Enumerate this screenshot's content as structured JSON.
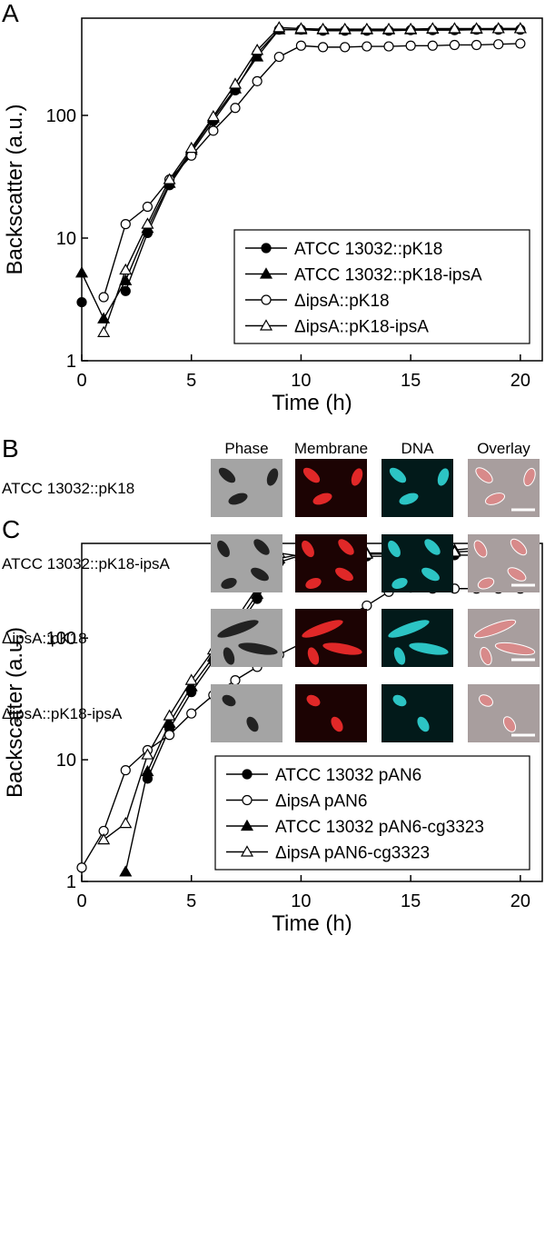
{
  "chart_data": [
    {
      "type": "line",
      "panel": "A",
      "x_label": "Time (h)",
      "y_label": "Backscatter (a.u.)",
      "yscale": "log",
      "xlim": [
        0,
        21
      ],
      "ylim": [
        1,
        620
      ],
      "xticks": [
        0,
        5,
        10,
        15,
        20
      ],
      "yticks": [
        1,
        10,
        100
      ],
      "legend": "lower right",
      "x": [
        0,
        1,
        2,
        3,
        4,
        5,
        6,
        7,
        8,
        9,
        10,
        11,
        12,
        13,
        14,
        15,
        16,
        17,
        18,
        19,
        20
      ],
      "series": [
        {
          "name": "ATCC 13032::pK18",
          "color": "#000000",
          "marker": "circle",
          "filled": true,
          "values": [
            3,
            null,
            3.7,
            11,
            27,
            50,
            90,
            160,
            320,
            500,
            500,
            490,
            490,
            490,
            490,
            495,
            495,
            495,
            500,
            500,
            500
          ]
        },
        {
          "name": "ATCC 13032::pK18-ipsA",
          "color": "#000000",
          "marker": "triangle",
          "filled": true,
          "values": [
            5.2,
            2.2,
            4.5,
            12,
            28,
            52,
            95,
            165,
            300,
            500,
            500,
            500,
            500,
            500,
            500,
            500,
            505,
            505,
            505,
            510,
            510
          ]
        },
        {
          "name": "ΔipsA::pK18",
          "color": "#000000",
          "marker": "circle",
          "filled": false,
          "values": [
            null,
            3.3,
            13,
            18,
            30,
            47,
            75,
            115,
            190,
            300,
            370,
            360,
            360,
            365,
            365,
            370,
            370,
            375,
            375,
            380,
            385
          ]
        },
        {
          "name": "ΔipsA::pK18-ipsA",
          "color": "#000000",
          "marker": "triangle",
          "filled": false,
          "values": [
            null,
            1.7,
            5.5,
            13,
            30,
            54,
            98,
            180,
            340,
            520,
            510,
            505,
            505,
            505,
            505,
            505,
            510,
            510,
            510,
            510,
            510
          ]
        }
      ]
    },
    {
      "type": "line",
      "panel": "C",
      "x_label": "Time (h)",
      "y_label": "Backscatter (a.u.)",
      "yscale": "log",
      "xlim": [
        0,
        21
      ],
      "ylim": [
        1,
        600
      ],
      "xticks": [
        0,
        5,
        10,
        15,
        20
      ],
      "yticks": [
        1,
        10,
        100
      ],
      "legend": "lower right",
      "x": [
        0,
        1,
        2,
        3,
        4,
        5,
        6,
        7,
        8,
        9,
        10,
        11,
        12,
        13,
        14,
        15,
        16,
        17,
        18,
        19,
        20
      ],
      "series": [
        {
          "name": "ATCC 13032 pAN6",
          "color": "#000000",
          "marker": "circle",
          "filled": true,
          "values": [
            null,
            null,
            null,
            7,
            18,
            36,
            65,
            115,
            210,
            420,
            480,
            470,
            470,
            470,
            470,
            470,
            480,
            480,
            480,
            480,
            480
          ]
        },
        {
          "name": "ΔipsA pAN6",
          "color": "#000000",
          "marker": "circle",
          "filled": false,
          "values": [
            1.3,
            2.6,
            8.2,
            12,
            16,
            24,
            34,
            45,
            58,
            73,
            90,
            112,
            145,
            185,
            240,
            260,
            255,
            255,
            255,
            255,
            255
          ]
        },
        {
          "name": "ATCC 13032 pAN6-cg3323",
          "color": "#000000",
          "marker": "triangle",
          "filled": true,
          "values": [
            null,
            null,
            1.2,
            8,
            20,
            40,
            70,
            125,
            230,
            450,
            490,
            480,
            490,
            500,
            500,
            510,
            520,
            530,
            550,
            550,
            560
          ]
        },
        {
          "name": "ΔipsA pAN6-cg3323",
          "color": "#000000",
          "marker": "triangle",
          "filled": false,
          "values": [
            null,
            2.2,
            3,
            11,
            23,
            45,
            80,
            140,
            260,
            500,
            470,
            480,
            480,
            490,
            490,
            500,
            500,
            510,
            520,
            520,
            520
          ]
        }
      ]
    }
  ],
  "panel_b": {
    "panel": "B",
    "columns": [
      "Phase",
      "Membrane",
      "DNA",
      "Overlay"
    ],
    "rows": [
      "ATCC 13032::pK18",
      "ATCC 13032::pK18-ipsA",
      "ΔipsA::pK18",
      "ΔipsA::pK18-ipsA"
    ]
  }
}
